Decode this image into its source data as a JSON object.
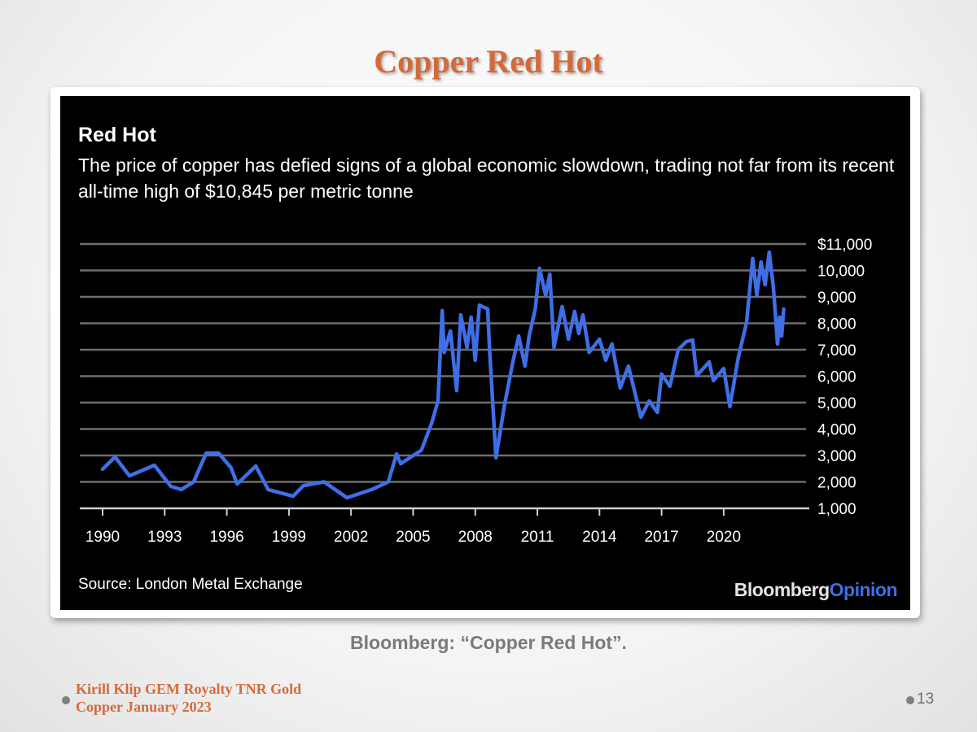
{
  "slide": {
    "title": "Copper Red Hot",
    "caption": "Bloomberg: “Copper Red Hot”.",
    "footer_line1": "Kirill Klip GEM Royalty TNR Gold",
    "footer_line2": "Copper January 2023",
    "page_number": "13"
  },
  "chart_data": {
    "type": "line",
    "title": "Red Hot",
    "subtitle": "The price of copper has defied signs of a global economic slowdown, trading not far from its recent all-time high of $10,845 per metric tonne",
    "source": "Source: London Metal Exchange",
    "logo": "BloombergOpinion",
    "logo_parts": [
      "Bloomberg",
      "Opinion"
    ],
    "line_color": "#3f6ee6",
    "background": "#000000",
    "grid": true,
    "ylim": [
      1000,
      11000
    ],
    "xlim": [
      1990,
      2023
    ],
    "y_ticks": [
      11000,
      10000,
      9000,
      8000,
      7000,
      6000,
      5000,
      4000,
      3000,
      2000,
      1000
    ],
    "y_tick_labels": [
      "$11,000",
      "10,000",
      "9,000",
      "8,000",
      "7,000",
      "6,000",
      "5,000",
      "4,000",
      "3,000",
      "2,000",
      "1,000"
    ],
    "x_ticks": [
      1990,
      1993,
      1996,
      1999,
      2002,
      2005,
      2008,
      2011,
      2014,
      2017,
      2020
    ],
    "x_tick_labels": [
      "1990",
      "1993",
      "1996",
      "1999",
      "2002",
      "2005",
      "2008",
      "2011",
      "2014",
      "2017",
      "2020"
    ],
    "series": [
      {
        "x": [
          1990.0,
          1990.6,
          1991.3,
          1992.5,
          1993.3,
          1993.8,
          1994.4,
          1995.0,
          1995.6,
          1996.2,
          1996.5,
          1997.4,
          1998.0,
          1999.2,
          1999.7,
          2000.7,
          2001.8,
          2003.0,
          2003.8,
          2004.2,
          2004.4,
          2005.4,
          2005.9,
          2006.2,
          2006.4,
          2006.5,
          2006.8,
          2007.1,
          2007.3,
          2007.6,
          2007.8,
          2008.0,
          2008.2,
          2008.6,
          2008.7,
          2009.0,
          2009.4,
          2009.8,
          2010.1,
          2010.4,
          2010.6,
          2010.9,
          2011.1,
          2011.4,
          2011.6,
          2011.8,
          2012.2,
          2012.5,
          2012.8,
          2013.0,
          2013.2,
          2013.5,
          2014.0,
          2014.3,
          2014.6,
          2015.0,
          2015.4,
          2016.0,
          2016.4,
          2016.8,
          2017.0,
          2017.4,
          2017.8,
          2018.2,
          2018.5,
          2018.7,
          2019.3,
          2019.5,
          2020.0,
          2020.3,
          2020.7,
          2021.1,
          2021.4,
          2021.6,
          2021.8,
          2022.0,
          2022.2,
          2022.4,
          2022.6,
          2022.7,
          2022.8,
          2022.9
        ],
        "y": [
          2480,
          2940,
          2230,
          2630,
          1830,
          1710,
          2000,
          3090,
          3090,
          2540,
          1920,
          2600,
          1710,
          1460,
          1860,
          2000,
          1400,
          1710,
          2000,
          3060,
          2690,
          3200,
          4230,
          5060,
          8480,
          6900,
          7710,
          5460,
          8320,
          7090,
          8230,
          6600,
          8690,
          8540,
          6900,
          2910,
          4850,
          6480,
          7520,
          6380,
          7520,
          8540,
          10080,
          9060,
          9860,
          7090,
          8630,
          7400,
          8450,
          7620,
          8320,
          6900,
          7400,
          6600,
          7220,
          5550,
          6380,
          4450,
          5060,
          4630,
          6080,
          5620,
          7000,
          7310,
          7370,
          6020,
          6540,
          5830,
          6290,
          4850,
          6690,
          8020,
          10450,
          9060,
          10320,
          9460,
          10690,
          9370,
          7220,
          8230,
          7520,
          8540
        ]
      }
    ]
  }
}
